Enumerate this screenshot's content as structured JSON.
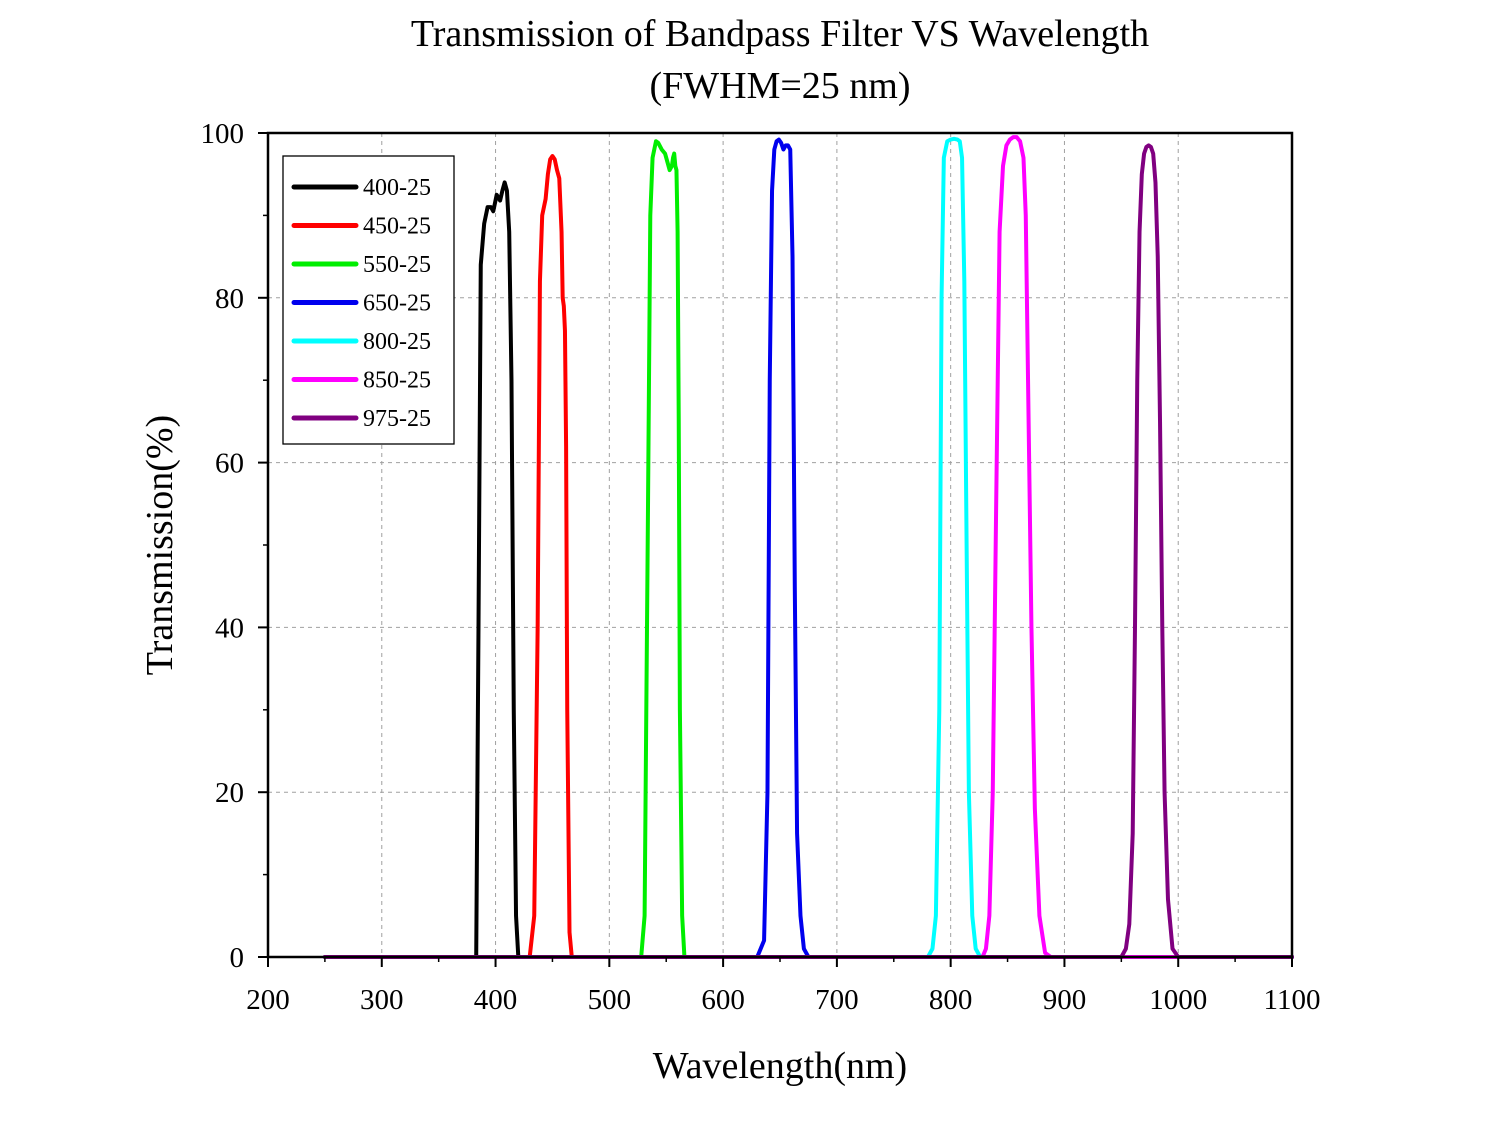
{
  "chart_data": {
    "type": "line",
    "title": "Transmission of Bandpass Filter VS Wavelength",
    "subtitle": "(FWHM=25 nm)",
    "xlabel": "Wavelength(nm)",
    "ylabel": "Transmission(%)",
    "xlim": [
      200,
      1100
    ],
    "ylim": [
      0,
      100
    ],
    "x_ticks": [
      200,
      300,
      400,
      500,
      600,
      700,
      800,
      900,
      1000,
      1100
    ],
    "y_ticks": [
      0,
      20,
      40,
      60,
      80,
      100
    ],
    "x_tick_labels": [
      "200",
      "300",
      "400",
      "500",
      "600",
      "700",
      "800",
      "900",
      "1000",
      "1100"
    ],
    "y_tick_labels": [
      "0",
      "20",
      "40",
      "60",
      "80",
      "100"
    ],
    "grid": true,
    "legend_position": "top-left",
    "series": [
      {
        "name": "400-25",
        "color": "#000000",
        "points": [
          [
            250,
            0
          ],
          [
            383,
            0
          ],
          [
            385,
            40
          ],
          [
            387,
            84
          ],
          [
            390,
            89
          ],
          [
            393,
            91
          ],
          [
            396,
            91
          ],
          [
            398,
            90.5
          ],
          [
            401,
            92.5
          ],
          [
            404,
            91.8
          ],
          [
            406,
            93
          ],
          [
            408,
            94
          ],
          [
            410,
            93
          ],
          [
            412,
            88
          ],
          [
            414,
            70
          ],
          [
            416,
            30
          ],
          [
            418,
            5
          ],
          [
            420,
            0
          ],
          [
            1100,
            0
          ]
        ]
      },
      {
        "name": "450-25",
        "color": "#ff0000",
        "points": [
          [
            250,
            0
          ],
          [
            430,
            0
          ],
          [
            434,
            5
          ],
          [
            437,
            40
          ],
          [
            439,
            82
          ],
          [
            441,
            90
          ],
          [
            444,
            92
          ],
          [
            446,
            95
          ],
          [
            448,
            96.8
          ],
          [
            450,
            97.2
          ],
          [
            452,
            96.8
          ],
          [
            454,
            95.5
          ],
          [
            456,
            94.5
          ],
          [
            458,
            88
          ],
          [
            459,
            80
          ],
          [
            460,
            79
          ],
          [
            461,
            76
          ],
          [
            462,
            62
          ],
          [
            463,
            30
          ],
          [
            465,
            3
          ],
          [
            467,
            0
          ],
          [
            1100,
            0
          ]
        ]
      },
      {
        "name": "550-25",
        "color": "#00ee00",
        "points": [
          [
            250,
            0
          ],
          [
            528,
            0
          ],
          [
            531,
            5
          ],
          [
            534,
            55
          ],
          [
            536,
            90
          ],
          [
            538,
            97
          ],
          [
            541,
            99
          ],
          [
            543,
            98.8
          ],
          [
            546,
            98
          ],
          [
            549,
            97.5
          ],
          [
            551,
            96.5
          ],
          [
            553,
            95.5
          ],
          [
            555,
            96
          ],
          [
            556,
            97
          ],
          [
            557,
            97.5
          ],
          [
            558,
            96
          ],
          [
            559,
            95.5
          ],
          [
            560,
            88
          ],
          [
            561,
            65
          ],
          [
            562,
            30
          ],
          [
            564,
            5
          ],
          [
            566,
            0
          ],
          [
            1100,
            0
          ]
        ]
      },
      {
        "name": "650-25",
        "color": "#0000ee",
        "points": [
          [
            250,
            0
          ],
          [
            630,
            0
          ],
          [
            636,
            2
          ],
          [
            639,
            20
          ],
          [
            641,
            70
          ],
          [
            643,
            93
          ],
          [
            645,
            98
          ],
          [
            647,
            99
          ],
          [
            649,
            99.2
          ],
          [
            651,
            98.8
          ],
          [
            653,
            98
          ],
          [
            655,
            98.5
          ],
          [
            657,
            98.5
          ],
          [
            659,
            98
          ],
          [
            661,
            85
          ],
          [
            663,
            45
          ],
          [
            665,
            15
          ],
          [
            668,
            5
          ],
          [
            671,
            1
          ],
          [
            675,
            0
          ],
          [
            1100,
            0
          ]
        ]
      },
      {
        "name": "800-25",
        "color": "#00ffff",
        "points": [
          [
            250,
            0
          ],
          [
            780,
            0
          ],
          [
            784,
            1
          ],
          [
            787,
            5
          ],
          [
            790,
            30
          ],
          [
            792,
            80
          ],
          [
            794,
            97
          ],
          [
            797,
            99
          ],
          [
            800,
            99.2
          ],
          [
            803,
            99.3
          ],
          [
            806,
            99.2
          ],
          [
            808,
            99
          ],
          [
            810,
            97
          ],
          [
            812,
            82
          ],
          [
            814,
            50
          ],
          [
            816,
            20
          ],
          [
            819,
            5
          ],
          [
            822,
            1
          ],
          [
            826,
            0
          ],
          [
            1100,
            0
          ]
        ]
      },
      {
        "name": "850-25",
        "color": "#ff00ff",
        "points": [
          [
            250,
            0
          ],
          [
            828,
            0
          ],
          [
            831,
            1
          ],
          [
            834,
            5
          ],
          [
            837,
            20
          ],
          [
            840,
            55
          ],
          [
            843,
            88
          ],
          [
            846,
            96
          ],
          [
            849,
            98.5
          ],
          [
            852,
            99.2
          ],
          [
            855,
            99.5
          ],
          [
            858,
            99.5
          ],
          [
            861,
            99
          ],
          [
            864,
            97
          ],
          [
            866,
            90
          ],
          [
            868,
            70
          ],
          [
            871,
            40
          ],
          [
            874,
            18
          ],
          [
            878,
            5
          ],
          [
            883,
            0.5
          ],
          [
            888,
            0
          ],
          [
            1100,
            0
          ]
        ]
      },
      {
        "name": "975-25",
        "color": "#800080",
        "points": [
          [
            250,
            0
          ],
          [
            950,
            0
          ],
          [
            954,
            1
          ],
          [
            957,
            4
          ],
          [
            960,
            15
          ],
          [
            962,
            40
          ],
          [
            964,
            70
          ],
          [
            966,
            88
          ],
          [
            968,
            95
          ],
          [
            970,
            97.5
          ],
          [
            972,
            98.3
          ],
          [
            974,
            98.5
          ],
          [
            976,
            98.3
          ],
          [
            978,
            97.5
          ],
          [
            980,
            94
          ],
          [
            982,
            85
          ],
          [
            984,
            65
          ],
          [
            986,
            40
          ],
          [
            988,
            20
          ],
          [
            991,
            7
          ],
          [
            995,
            1
          ],
          [
            1000,
            0
          ],
          [
            1100,
            0
          ]
        ]
      }
    ]
  }
}
